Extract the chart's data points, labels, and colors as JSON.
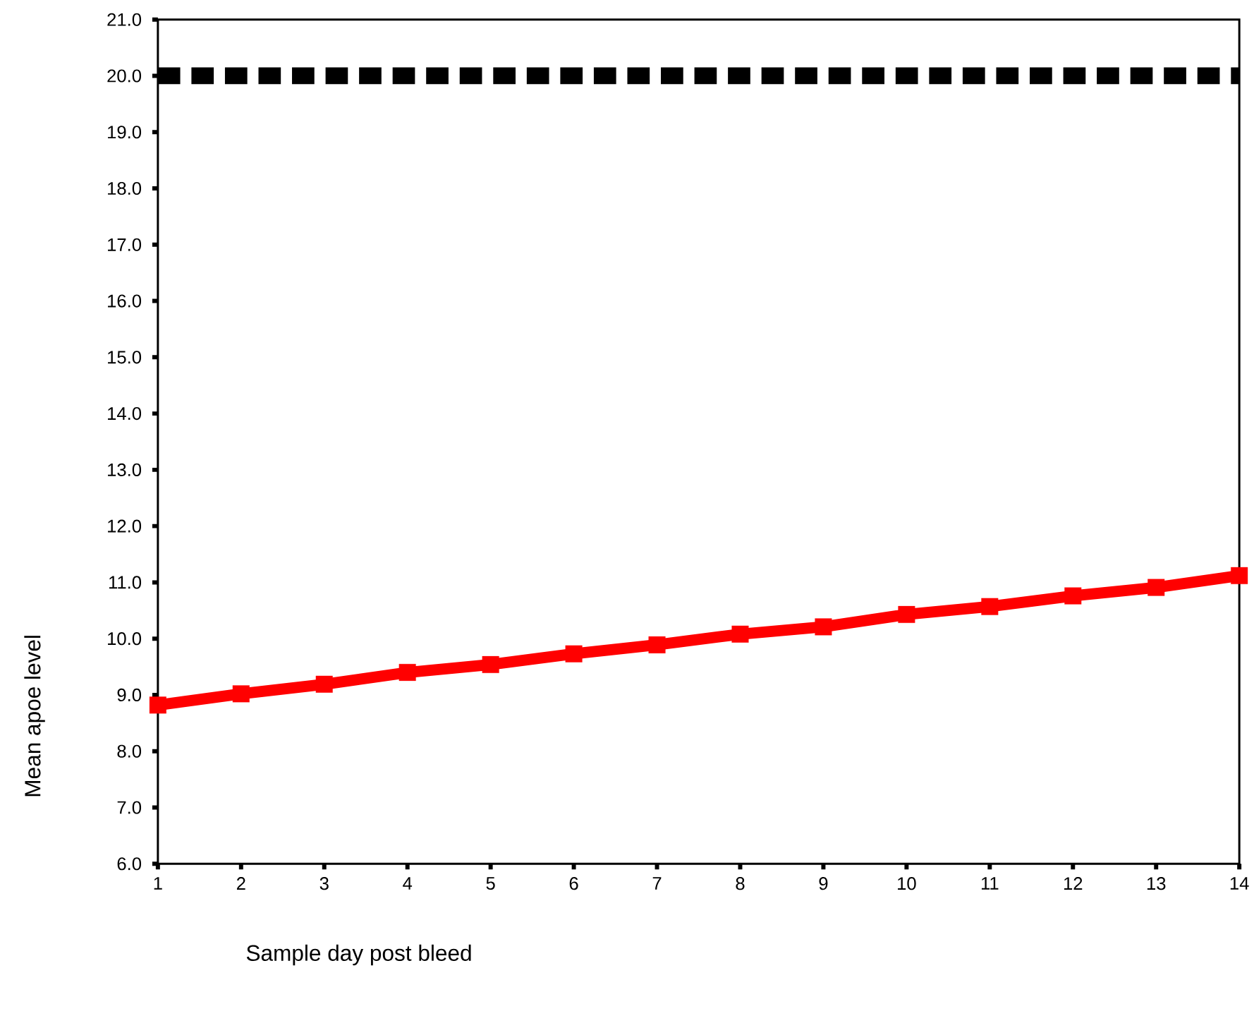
{
  "chart_data": {
    "type": "line",
    "xlabel": "Sample day post bleed",
    "ylabel": "Mean apoe level",
    "x": [
      1,
      2,
      3,
      4,
      5,
      6,
      7,
      8,
      9,
      10,
      11,
      12,
      13,
      14
    ],
    "series": [
      {
        "color": "#ff0000",
        "values": [
          8.82,
          9.02,
          9.19,
          9.4,
          9.54,
          9.73,
          9.89,
          10.08,
          10.21,
          10.43,
          10.57,
          10.76,
          10.91,
          11.12
        ]
      }
    ],
    "xlim": [
      1,
      14
    ],
    "xticks": [
      1,
      2,
      3,
      4,
      5,
      6,
      7,
      8,
      9,
      10,
      11,
      12,
      13,
      14
    ],
    "ylim": [
      6,
      21
    ],
    "yticks": [
      {
        "value": 6,
        "label": "6.0"
      },
      {
        "value": 7,
        "label": "7.0"
      },
      {
        "value": 8,
        "label": "8.0"
      },
      {
        "value": 9,
        "label": "9.0"
      },
      {
        "value": 10,
        "label": "10.0"
      },
      {
        "value": 11,
        "label": "11.0"
      },
      {
        "value": 12,
        "label": "12.0"
      },
      {
        "value": 13,
        "label": "13.0"
      },
      {
        "value": 14,
        "label": "14.0"
      },
      {
        "value": 15,
        "label": "15.0"
      },
      {
        "value": 16,
        "label": "16.0"
      },
      {
        "value": 17,
        "label": "17.0"
      },
      {
        "value": 18,
        "label": "18.0"
      },
      {
        "value": 19,
        "label": "19.0"
      },
      {
        "value": 20,
        "label": "20.0"
      },
      {
        "value": 21,
        "label": "21.0"
      }
    ],
    "ref_lines": [
      {
        "axis": "y",
        "value": 20,
        "color": "#000000",
        "line_style": "dashed"
      }
    ],
    "marker": "square",
    "line_style": "solid"
  }
}
